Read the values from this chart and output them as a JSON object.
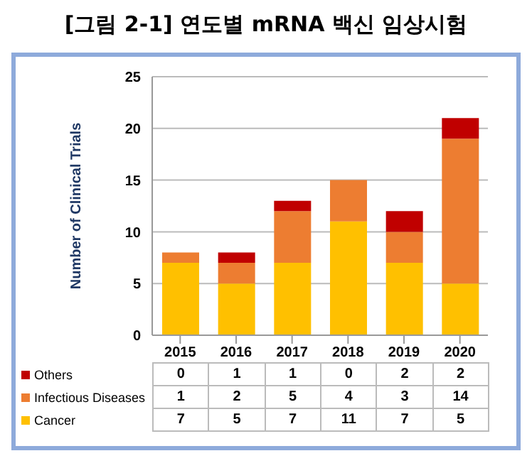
{
  "chart_data": {
    "type": "bar",
    "title": "[그림 2-1] 연도별 mRNA 백신 임상시험",
    "ylabel": "Number of Clinical Trials",
    "categories": [
      "2015",
      "2016",
      "2017",
      "2018",
      "2019",
      "2020"
    ],
    "stacked": true,
    "series": [
      {
        "name": "Cancer",
        "color": "#ffc000",
        "values": [
          7,
          5,
          7,
          11,
          7,
          5
        ]
      },
      {
        "name": "Infectious Diseases",
        "color": "#ed7d31",
        "values": [
          1,
          2,
          5,
          4,
          3,
          14
        ]
      },
      {
        "name": "Others",
        "color": "#c00000",
        "values": [
          0,
          1,
          1,
          0,
          2,
          2
        ]
      }
    ],
    "ylim": [
      0,
      25
    ],
    "yticks": [
      0,
      5,
      10,
      15,
      20,
      25
    ],
    "grid": "y",
    "legend": "bottom",
    "data_labels": true
  }
}
